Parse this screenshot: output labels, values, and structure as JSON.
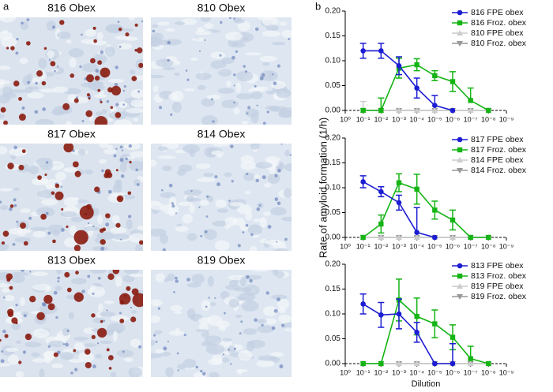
{
  "panel_a": {
    "label": "a",
    "images": [
      {
        "title": "816 Obex"
      },
      {
        "title": "810 Obex"
      },
      {
        "title": "817 Obex"
      },
      {
        "title": "814 Obex"
      },
      {
        "title": "813 Obex"
      },
      {
        "title": "819 Obex"
      }
    ]
  },
  "panel_b": {
    "label": "b"
  },
  "chart_data": [
    {
      "type": "line",
      "xscale": "log",
      "xlim": [
        1,
        1e-09
      ],
      "xticks": [
        {
          "value": 1,
          "label": "10⁰"
        },
        {
          "value": 0.1,
          "label": "10⁻¹"
        },
        {
          "value": 0.01,
          "label": "10⁻²"
        },
        {
          "value": 0.001,
          "label": "10⁻³"
        },
        {
          "value": 0.0001,
          "label": "10⁻⁴"
        },
        {
          "value": 1e-05,
          "label": "10⁻⁵"
        },
        {
          "value": 1e-06,
          "label": "10⁻⁶"
        },
        {
          "value": 1e-07,
          "label": "10⁻⁷"
        },
        {
          "value": 1e-08,
          "label": "10⁻⁸"
        },
        {
          "value": 1e-09,
          "label": "10⁻⁹"
        }
      ],
      "ylim": [
        0,
        0.2
      ],
      "yticks": [
        {
          "value": 0,
          "label": "0.00"
        },
        {
          "value": 0.05,
          "label": "0.05"
        },
        {
          "value": 0.1,
          "label": "0.10"
        },
        {
          "value": 0.15,
          "label": "0.15"
        },
        {
          "value": 0.2,
          "label": "0.20"
        }
      ],
      "legend": "upper right",
      "x": [
        0.1,
        0.01,
        0.001,
        0.0001,
        1e-05,
        1e-06,
        1e-07,
        1e-08
      ],
      "series": [
        {
          "name": "816 FPE obex",
          "color": "#1c1cd4",
          "marker": "circle",
          "values": [
            0.12,
            0.12,
            0.09,
            0.045,
            0.01,
            0,
            null,
            null
          ],
          "errors": [
            0.015,
            0.015,
            0.018,
            0.02,
            0.02,
            0,
            null,
            null
          ]
        },
        {
          "name": "816 Froz. obex",
          "color": "#14b414",
          "marker": "square",
          "values": [
            0,
            0,
            0.085,
            0.092,
            0.07,
            0.058,
            0.02,
            0
          ],
          "errors": [
            0,
            0.025,
            0.02,
            0.012,
            0.01,
            0.02,
            0.025,
            0
          ]
        },
        {
          "name": "810 FPE obex",
          "color": "#cccccc",
          "marker": "triangle-up",
          "values": [
            0,
            0,
            0,
            0,
            0,
            0,
            0,
            0
          ],
          "errors": [
            0.018,
            0,
            0,
            0,
            0,
            0,
            0,
            0
          ]
        },
        {
          "name": "810 Froz. obex",
          "color": "#999999",
          "marker": "triangle-down",
          "values": [
            0,
            0,
            0,
            0,
            0,
            0,
            0,
            0
          ],
          "errors": [
            0,
            0,
            0,
            0,
            0,
            0,
            0,
            0
          ]
        }
      ]
    },
    {
      "type": "line",
      "xscale": "log",
      "xlim": [
        1,
        1e-09
      ],
      "xticks": [
        {
          "value": 1,
          "label": "10⁰"
        },
        {
          "value": 0.1,
          "label": "10⁻¹"
        },
        {
          "value": 0.01,
          "label": "10⁻²"
        },
        {
          "value": 0.001,
          "label": "10⁻³"
        },
        {
          "value": 0.0001,
          "label": "10⁻⁴"
        },
        {
          "value": 1e-05,
          "label": "10⁻⁵"
        },
        {
          "value": 1e-06,
          "label": "10⁻⁶"
        },
        {
          "value": 1e-07,
          "label": "10⁻⁷"
        },
        {
          "value": 1e-08,
          "label": "10⁻⁸"
        },
        {
          "value": 1e-09,
          "label": "10⁻⁹"
        }
      ],
      "ylim": [
        0,
        0.2
      ],
      "yticks": [
        {
          "value": 0,
          "label": "0.00"
        },
        {
          "value": 0.05,
          "label": "0.05"
        },
        {
          "value": 0.1,
          "label": "0.10"
        },
        {
          "value": 0.15,
          "label": "0.15"
        },
        {
          "value": 0.2,
          "label": "0.20"
        }
      ],
      "ylabel": "Rate of amyloid formation (1/h)",
      "legend": "upper right",
      "x": [
        0.1,
        0.01,
        0.001,
        0.0001,
        1e-05,
        1e-06,
        1e-07,
        1e-08
      ],
      "series": [
        {
          "name": "817 FPE obex",
          "color": "#1c1cd4",
          "marker": "circle",
          "values": [
            0.112,
            0.092,
            0.07,
            0.01,
            0,
            null,
            null,
            null
          ],
          "errors": [
            0.012,
            0.01,
            0.015,
            0.05,
            0,
            null,
            null,
            null
          ]
        },
        {
          "name": "817 Froz. obex",
          "color": "#14b414",
          "marker": "square",
          "values": [
            0,
            0.027,
            0.11,
            0.097,
            0.055,
            0.035,
            0,
            0
          ],
          "errors": [
            0,
            0.018,
            0.018,
            0.03,
            0.018,
            0.02,
            0,
            0
          ]
        },
        {
          "name": "814 FPE obex",
          "color": "#cccccc",
          "marker": "triangle-up",
          "values": [
            0,
            0,
            0,
            0,
            0,
            0,
            0,
            0
          ],
          "errors": [
            0,
            0,
            0,
            0,
            0,
            0,
            0,
            0
          ]
        },
        {
          "name": "814 Froz. obex",
          "color": "#999999",
          "marker": "triangle-down",
          "values": [
            0,
            0,
            0,
            0,
            0,
            0,
            0,
            0
          ],
          "errors": [
            0,
            0,
            0,
            0,
            0,
            0,
            0,
            0
          ]
        }
      ]
    },
    {
      "type": "line",
      "xscale": "log",
      "xlim": [
        1,
        1e-09
      ],
      "xticks": [
        {
          "value": 1,
          "label": "10⁰"
        },
        {
          "value": 0.1,
          "label": "10⁻¹"
        },
        {
          "value": 0.01,
          "label": "10⁻²"
        },
        {
          "value": 0.001,
          "label": "10⁻³"
        },
        {
          "value": 0.0001,
          "label": "10⁻⁴"
        },
        {
          "value": 1e-05,
          "label": "10⁻⁵"
        },
        {
          "value": 1e-06,
          "label": "10⁻⁶"
        },
        {
          "value": 1e-07,
          "label": "10⁻⁷"
        },
        {
          "value": 1e-08,
          "label": "10⁻⁸"
        },
        {
          "value": 1e-09,
          "label": "10⁻⁹"
        }
      ],
      "ylim": [
        0,
        0.2
      ],
      "yticks": [
        {
          "value": 0,
          "label": "0.00"
        },
        {
          "value": 0.05,
          "label": "0.05"
        },
        {
          "value": 0.1,
          "label": "0.10"
        },
        {
          "value": 0.15,
          "label": "0.15"
        },
        {
          "value": 0.2,
          "label": "0.20"
        }
      ],
      "xlabel": "Dilution",
      "legend": "upper right",
      "x": [
        0.1,
        0.01,
        0.001,
        0.0001,
        1e-05,
        1e-06,
        1e-07,
        1e-08
      ],
      "series": [
        {
          "name": "813 FPE obex",
          "color": "#1c1cd4",
          "marker": "circle",
          "values": [
            0.12,
            0.098,
            0.1,
            0.063,
            0,
            0,
            null,
            null
          ],
          "errors": [
            0.02,
            0.025,
            0.03,
            0.02,
            0,
            0.04,
            null,
            null
          ]
        },
        {
          "name": "813 Froz. obex",
          "color": "#14b414",
          "marker": "square",
          "values": [
            0,
            0,
            0.128,
            0.095,
            0.08,
            0.053,
            0.01,
            0
          ],
          "errors": [
            0,
            0,
            0.042,
            0.037,
            0.028,
            0.025,
            0.025,
            0
          ]
        },
        {
          "name": "819 FPE obex",
          "color": "#cccccc",
          "marker": "triangle-up",
          "values": [
            0,
            0,
            0,
            0,
            0,
            0,
            0,
            0
          ],
          "errors": [
            0,
            0,
            0,
            0,
            0,
            0,
            0,
            0
          ]
        },
        {
          "name": "819 Froz. obex",
          "color": "#999999",
          "marker": "triangle-down",
          "values": [
            0,
            0,
            0,
            0,
            0,
            0,
            0,
            0
          ],
          "errors": [
            0,
            0,
            0,
            0,
            0,
            0,
            0,
            0
          ]
        }
      ]
    }
  ]
}
